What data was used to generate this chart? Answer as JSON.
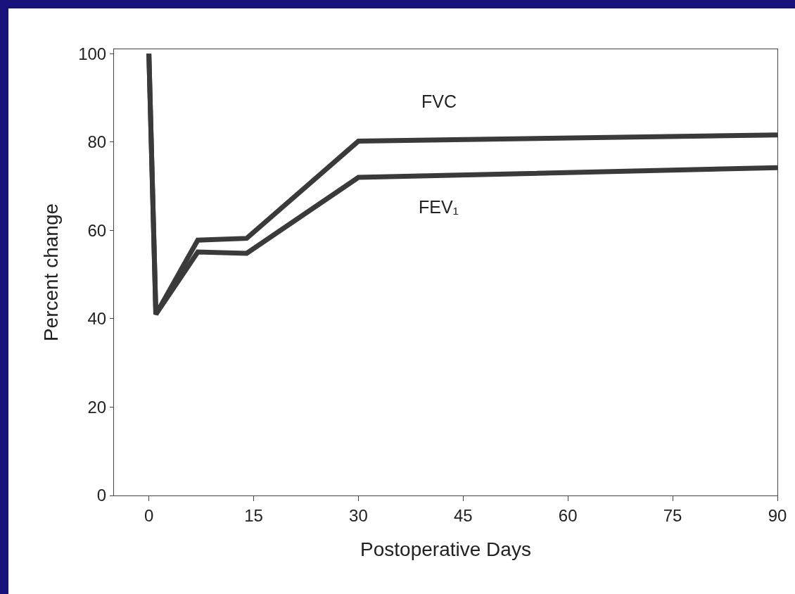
{
  "chart_data": {
    "type": "line",
    "xlabel": "Postoperative Days",
    "ylabel": "Percent change",
    "xlim": [
      -5,
      90
    ],
    "xticks": [
      0,
      15,
      30,
      45,
      60,
      75,
      90
    ],
    "ylim": [
      0,
      101
    ],
    "yticks": [
      0,
      20,
      40,
      60,
      80,
      100
    ],
    "grid": false,
    "legend": false,
    "marker": "none",
    "line_style": "solid",
    "series": [
      {
        "name": "FVC",
        "color": "#3a3a3a",
        "x": [
          0,
          1,
          7,
          14,
          30,
          90
        ],
        "values": [
          100,
          41,
          57.8,
          58.2,
          80.2,
          81.6
        ]
      },
      {
        "name": "FEV₁",
        "color": "#3a3a3a",
        "x": [
          0,
          1,
          7,
          14,
          30,
          90
        ],
        "values": [
          100,
          41,
          55.1,
          54.8,
          72,
          74.2
        ]
      }
    ]
  }
}
